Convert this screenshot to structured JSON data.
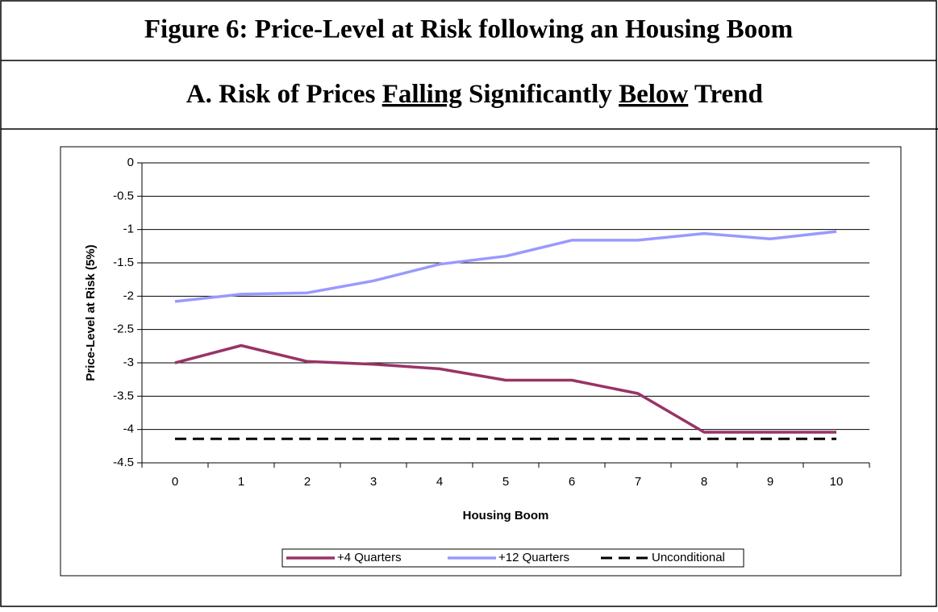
{
  "figure": {
    "title": "Figure 6: Price-Level at Risk following an Housing Boom",
    "subtitle": [
      "A. Risk of Prices ",
      "Falling",
      " Significantly ",
      "Below",
      " Trend"
    ]
  },
  "chart_data": {
    "type": "line",
    "y_label": "Price-Level at Risk (5%)",
    "x_label": "Housing Boom",
    "categories": [
      "0",
      "1",
      "2",
      "3",
      "4",
      "5",
      "6",
      "7",
      "8",
      "9",
      "10"
    ],
    "series": [
      {
        "name": "+4 Quarters",
        "color": "#993366",
        "style": "solid",
        "values": [
          -3.0,
          -2.74,
          -2.98,
          -3.02,
          -3.09,
          -3.26,
          -3.26,
          -3.46,
          -4.04,
          -4.04,
          -4.04
        ]
      },
      {
        "name": "+12 Quarters",
        "color": "#9999ff",
        "style": "solid",
        "values": [
          -2.08,
          -1.97,
          -1.95,
          -1.77,
          -1.52,
          -1.4,
          -1.16,
          -1.16,
          -1.06,
          -1.14,
          -1.03
        ]
      },
      {
        "name": "Unconditional",
        "color": "#000000",
        "style": "dashed",
        "values": [
          -4.14,
          -4.14,
          -4.14,
          -4.14,
          -4.14,
          -4.14,
          -4.14,
          -4.14,
          -4.14,
          -4.14,
          -4.14
        ]
      }
    ],
    "ylim": [
      -4.5,
      0
    ],
    "yticks": [
      0,
      -0.5,
      -1,
      -1.5,
      -2,
      -2.5,
      -3,
      -3.5,
      -4,
      -4.5
    ],
    "grid": true,
    "legend": "bottom"
  }
}
